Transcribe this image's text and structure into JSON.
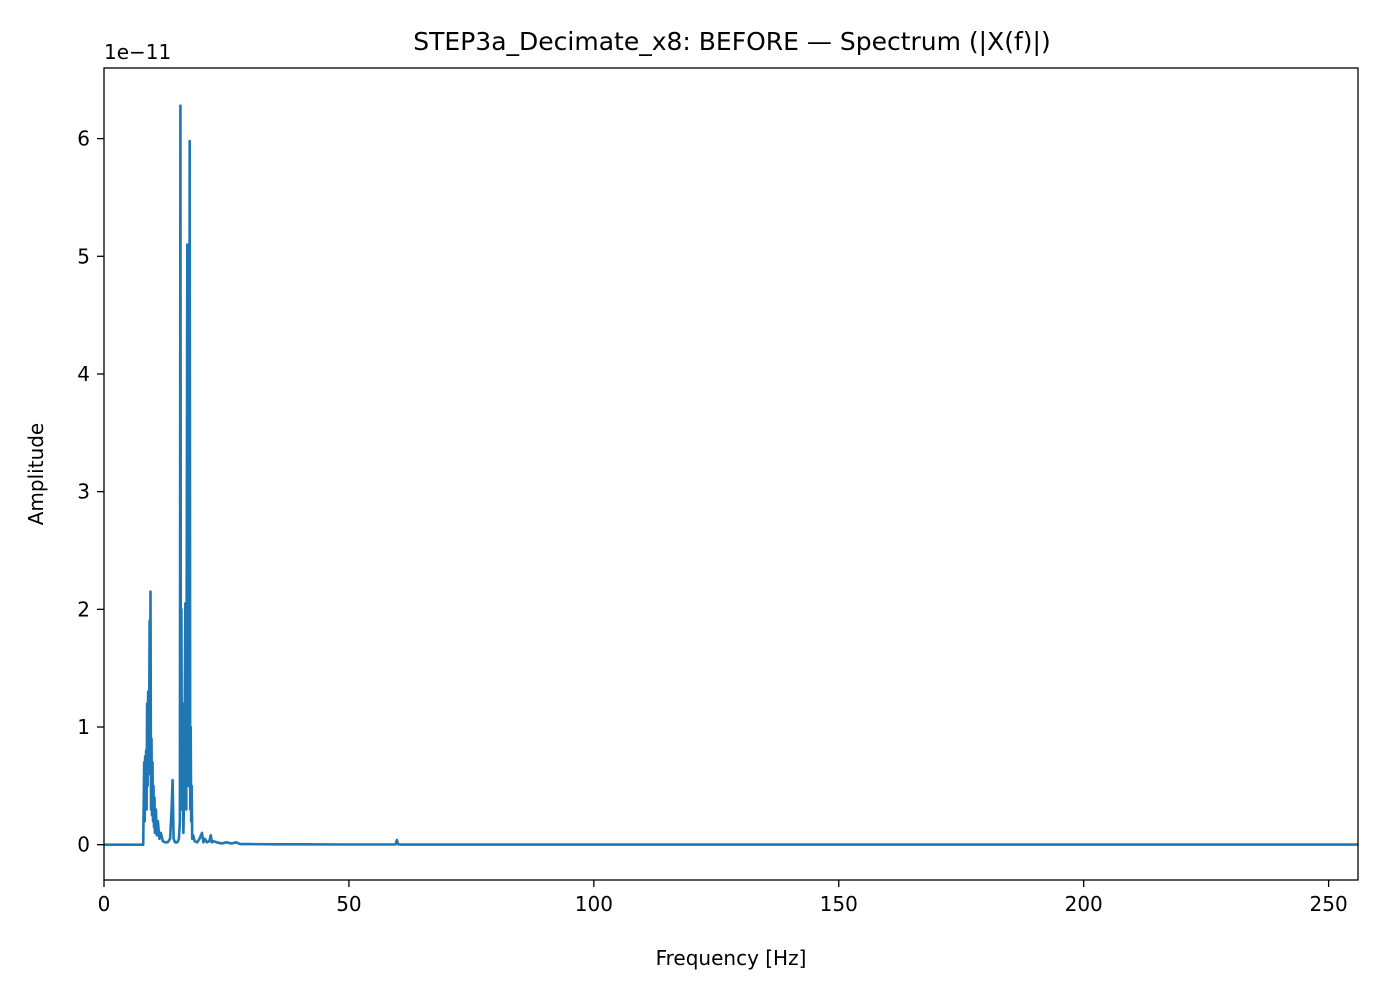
{
  "chart_data": {
    "type": "line",
    "title": "STEP3a_Decimate_x8: BEFORE — Spectrum (|X(f)|)",
    "xlabel": "Frequency [Hz]",
    "ylabel": "Amplitude",
    "y_scale_label": "1e−11",
    "y_scale_factor": 1e-11,
    "xlim": [
      0,
      256
    ],
    "ylim": [
      -0.3,
      6.6
    ],
    "x_ticks": [
      0,
      50,
      100,
      150,
      200,
      250
    ],
    "x_tick_labels": [
      "0",
      "50",
      "100",
      "150",
      "200",
      "250"
    ],
    "y_ticks": [
      0,
      1,
      2,
      3,
      4,
      5,
      6
    ],
    "y_tick_labels": [
      "0",
      "1",
      "2",
      "3",
      "4",
      "5",
      "6"
    ],
    "grid": false,
    "line_color": "#1f77b4",
    "series": [
      {
        "x": [
          0,
          8.0,
          8.2,
          8.3,
          8.4,
          8.5,
          8.6,
          8.7,
          8.8,
          8.9,
          9.0,
          9.1,
          9.2,
          9.3,
          9.4,
          9.5,
          9.6,
          9.7,
          9.8,
          9.9,
          10.0,
          10.1,
          10.2,
          10.3,
          10.4,
          10.6,
          10.8,
          11.0,
          11.3,
          11.6,
          12.0,
          12.5,
          13.0,
          13.5,
          13.8,
          14.0,
          14.2,
          14.5,
          15.0,
          15.3,
          15.5,
          15.6,
          15.7,
          15.8,
          15.9,
          16.0,
          16.2,
          16.4,
          16.6,
          16.8,
          17.0,
          17.2,
          17.4,
          17.5,
          17.6,
          17.7,
          17.8,
          17.9,
          18.0,
          18.2,
          18.5,
          19.0,
          19.5,
          20.0,
          20.3,
          20.6,
          21.0,
          21.5,
          21.8,
          22.0,
          22.3,
          23.0,
          24.0,
          25.0,
          26.0,
          27.0,
          27.5,
          28.0,
          30.0,
          35.0,
          40.0,
          50.0,
          59.5,
          59.8,
          60.0,
          60.2,
          60.5,
          70.0,
          100.0,
          150.0,
          200.0,
          256.0
        ],
        "values": [
          0,
          0,
          0.7,
          0.2,
          0.75,
          0.4,
          0.8,
          0.3,
          1.2,
          0.5,
          1.3,
          0.6,
          0.9,
          1.9,
          0.8,
          2.15,
          0.3,
          0.9,
          0.25,
          0.7,
          0.2,
          0.5,
          0.15,
          0.4,
          0.1,
          0.3,
          0.08,
          0.2,
          0.05,
          0.1,
          0.03,
          0.02,
          0.02,
          0.05,
          0.3,
          0.55,
          0.05,
          0.02,
          0.02,
          0.05,
          0.2,
          6.28,
          0.4,
          2.0,
          0.3,
          1.2,
          0.1,
          0.5,
          2.05,
          0.3,
          5.1,
          0.5,
          1.5,
          5.98,
          0.3,
          1.0,
          0.2,
          0.5,
          0.05,
          0.08,
          0.03,
          0.02,
          0.05,
          0.1,
          0.02,
          0.05,
          0.02,
          0.03,
          0.08,
          0.02,
          0.03,
          0.02,
          0.01,
          0.02,
          0.01,
          0.02,
          0.01,
          0.005,
          0.005,
          0.003,
          0.003,
          0.002,
          0.002,
          0.04,
          0.005,
          0.002,
          0.001,
          0.001,
          0.001,
          0.001,
          0.001,
          0.001
        ]
      }
    ]
  }
}
